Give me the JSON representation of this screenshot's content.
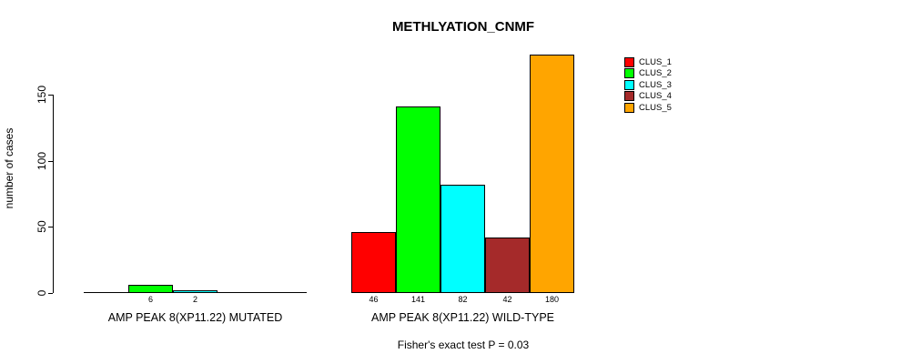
{
  "title": "METHLYATION_CNMF",
  "y_axis": {
    "label": "number of cases"
  },
  "footer": "Fisher's exact test P = 0.03",
  "chart_data": {
    "type": "bar",
    "title": "METHLYATION_CNMF",
    "ylabel": "number of cases",
    "xlabel": "",
    "ylim": [
      0,
      185
    ],
    "yticks": [
      0,
      50,
      100,
      150
    ],
    "grid": false,
    "legend_position": "top-right",
    "clusters": [
      "CLUS_1",
      "CLUS_2",
      "CLUS_3",
      "CLUS_4",
      "CLUS_5"
    ],
    "cluster_colors": [
      "#FF0000",
      "#00FF00",
      "#00FFFF",
      "#A52A2A",
      "#FFA500"
    ],
    "groups": [
      {
        "label": "AMP PEAK 8(XP11.22) MUTATED",
        "values": [
          null,
          6,
          2,
          null,
          null
        ]
      },
      {
        "label": "AMP PEAK 8(XP11.22) WILD-TYPE",
        "values": [
          46,
          141,
          82,
          42,
          180
        ]
      }
    ],
    "annotation": "Fisher's exact test P = 0.03"
  }
}
